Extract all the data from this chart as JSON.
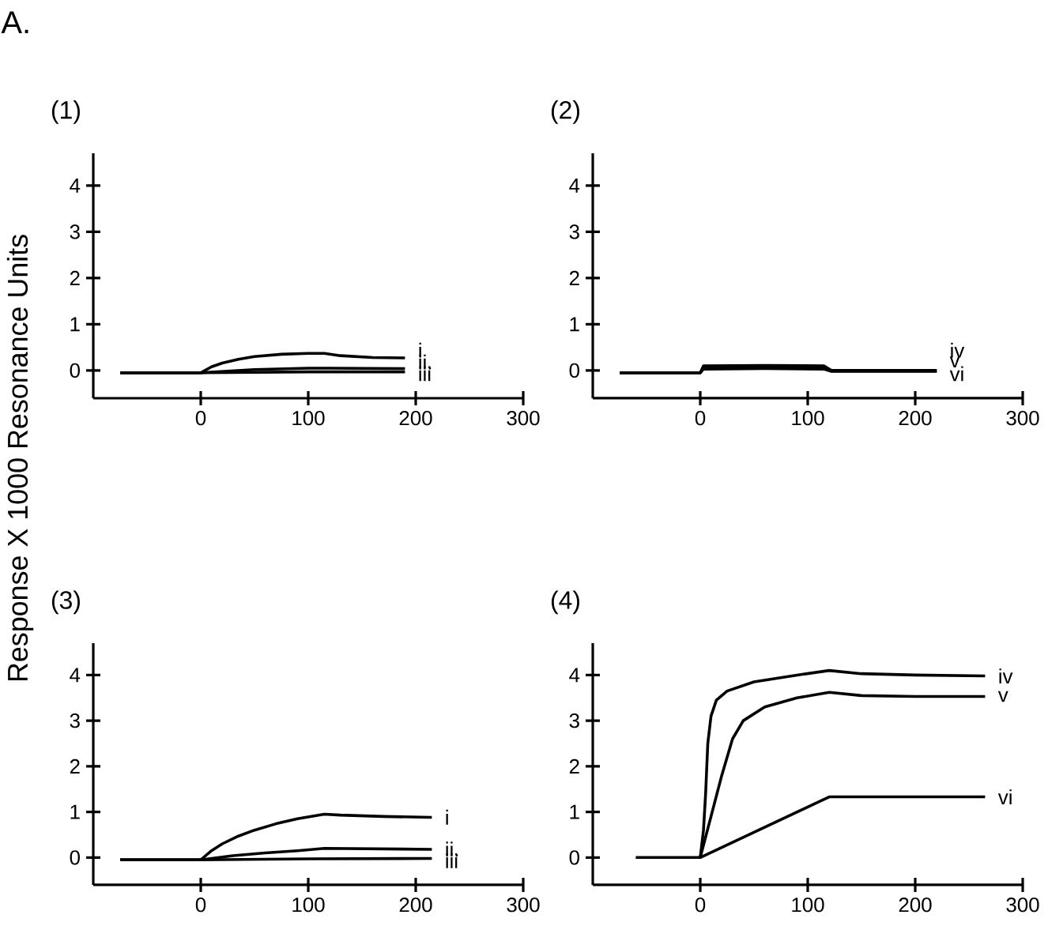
{
  "chart_data": [
    {
      "type": "line",
      "title": "(1)",
      "ylabel": "Response  X 1000 Resonance Units",
      "annotations": [
        "A."
      ],
      "xlim": [
        -100,
        300
      ],
      "ylim": [
        -0.6,
        4.7
      ],
      "xticks": [
        0,
        100,
        200,
        300
      ],
      "yticks": [
        0,
        1,
        2,
        3,
        4
      ],
      "series": [
        {
          "name": "i",
          "color": "#000000",
          "x": [
            -75,
            0,
            10,
            20,
            35,
            50,
            75,
            100,
            115,
            130,
            160,
            190
          ],
          "values": [
            -0.05,
            -0.05,
            0.08,
            0.16,
            0.24,
            0.3,
            0.35,
            0.37,
            0.37,
            0.32,
            0.28,
            0.27
          ]
        },
        {
          "name": "ii.",
          "color": "#000000",
          "x": [
            -75,
            0,
            50,
            100,
            120,
            190
          ],
          "values": [
            -0.05,
            -0.05,
            0.02,
            0.05,
            0.05,
            0.04
          ]
        },
        {
          "name": "iii",
          "color": "#000000",
          "x": [
            -75,
            0,
            100,
            190
          ],
          "values": [
            -0.05,
            -0.05,
            -0.03,
            -0.03
          ]
        }
      ]
    },
    {
      "type": "line",
      "title": "(2)",
      "xlim": [
        -100,
        300
      ],
      "ylim": [
        -0.6,
        4.7
      ],
      "xticks": [
        0,
        100,
        200,
        300
      ],
      "yticks": [
        0,
        1,
        2,
        3,
        4
      ],
      "series": [
        {
          "name": "iv",
          "color": "#000000",
          "x": [
            -75,
            0,
            3,
            60,
            115,
            122,
            220
          ],
          "values": [
            -0.05,
            -0.05,
            0.1,
            0.11,
            0.1,
            0.0,
            0.0
          ]
        },
        {
          "name": "v",
          "color": "#000000",
          "x": [
            -75,
            0,
            3,
            60,
            115,
            122,
            220
          ],
          "values": [
            -0.05,
            -0.05,
            0.07,
            0.08,
            0.07,
            -0.01,
            -0.01
          ]
        },
        {
          "name": "vi",
          "color": "#000000",
          "x": [
            -75,
            0,
            3,
            60,
            115,
            122,
            220
          ],
          "values": [
            -0.05,
            -0.05,
            0.03,
            0.04,
            0.03,
            -0.02,
            -0.02
          ]
        }
      ]
    },
    {
      "type": "line",
      "title": "(3)",
      "xlim": [
        -100,
        300
      ],
      "ylim": [
        -0.6,
        4.7
      ],
      "xticks": [
        0,
        100,
        200,
        300
      ],
      "yticks": [
        0,
        1,
        2,
        3,
        4
      ],
      "series": [
        {
          "name": "i",
          "color": "#000000",
          "x": [
            -75,
            0,
            10,
            20,
            35,
            50,
            70,
            90,
            115,
            130,
            170,
            215
          ],
          "values": [
            -0.05,
            -0.05,
            0.15,
            0.3,
            0.47,
            0.6,
            0.74,
            0.85,
            0.95,
            0.93,
            0.9,
            0.88
          ]
        },
        {
          "name": "ii.",
          "color": "#000000",
          "x": [
            -75,
            0,
            30,
            60,
            90,
            115,
            215
          ],
          "values": [
            -0.05,
            -0.05,
            0.04,
            0.1,
            0.15,
            0.2,
            0.18
          ]
        },
        {
          "name": "iii",
          "color": "#000000",
          "x": [
            -75,
            0,
            100,
            215
          ],
          "values": [
            -0.05,
            -0.05,
            -0.03,
            -0.02
          ]
        }
      ]
    },
    {
      "type": "line",
      "title": "(4)",
      "xlim": [
        -100,
        300
      ],
      "ylim": [
        -0.6,
        4.7
      ],
      "xticks": [
        0,
        100,
        200,
        300
      ],
      "yticks": [
        0,
        1,
        2,
        3,
        4
      ],
      "series": [
        {
          "name": "iv",
          "color": "#000000",
          "x": [
            -60,
            0,
            3,
            5,
            7,
            10,
            15,
            25,
            50,
            90,
            120,
            150,
            200,
            265
          ],
          "values": [
            0,
            0,
            0.6,
            1.4,
            2.5,
            3.1,
            3.45,
            3.65,
            3.85,
            4.0,
            4.1,
            4.03,
            4.0,
            3.98
          ]
        },
        {
          "name": "v",
          "color": "#000000",
          "x": [
            0,
            10,
            20,
            30,
            40,
            60,
            90,
            120,
            150,
            200,
            265
          ],
          "values": [
            0,
            0.9,
            1.8,
            2.6,
            3.0,
            3.3,
            3.5,
            3.62,
            3.55,
            3.53,
            3.53
          ]
        },
        {
          "name": "vi",
          "color": "#000000",
          "x": [
            0,
            120,
            200,
            265
          ],
          "values": [
            0,
            1.33,
            1.33,
            1.33
          ]
        }
      ]
    }
  ]
}
